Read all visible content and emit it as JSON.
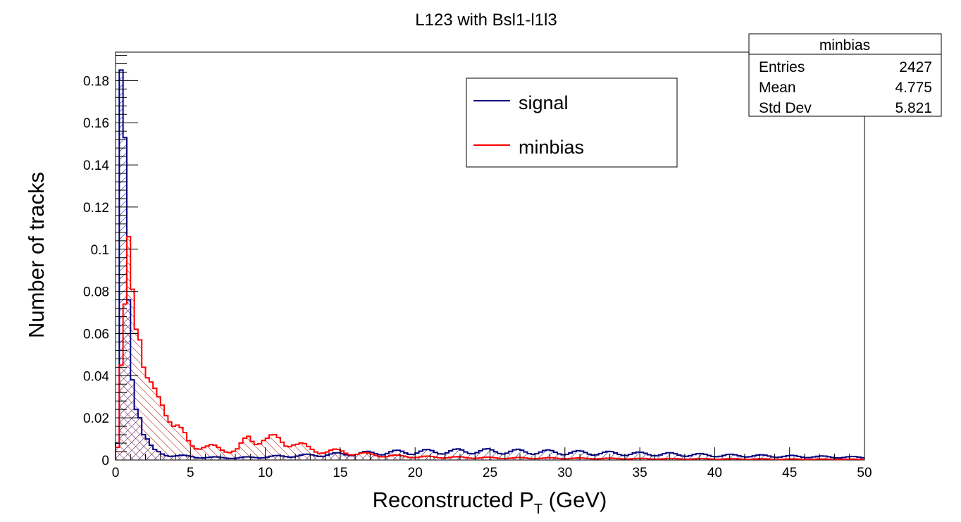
{
  "chart_data": {
    "type": "histogram",
    "title": "L123 with Bsl1-l1l3",
    "xlabel_main": "Reconstructed P",
    "xlabel_sub": "T",
    "xlabel_unit": " (GeV)",
    "ylabel": "Number of tracks",
    "xlim": [
      0,
      50
    ],
    "ylim": [
      0,
      0.1935
    ],
    "bin_width": 0.25,
    "x_ticks": [
      0,
      5,
      10,
      15,
      20,
      25,
      30,
      35,
      40,
      45,
      50
    ],
    "y_ticks": [
      0,
      0.02,
      0.04,
      0.06,
      0.08,
      0.1,
      0.12,
      0.14,
      0.16,
      0.18
    ],
    "x_tick_labels": [
      "0",
      "5",
      "10",
      "15",
      "20",
      "25",
      "30",
      "35",
      "40",
      "45",
      "50"
    ],
    "y_tick_labels": [
      "0",
      "0.02",
      "0.04",
      "0.06",
      "0.08",
      "0.1",
      "0.12",
      "0.14",
      "0.16",
      "0.18"
    ],
    "legend": {
      "placement": "top-center-right",
      "entries": [
        "signal",
        "minbias"
      ]
    },
    "stats_box": {
      "title": "minbias",
      "rows": [
        {
          "label": "Entries",
          "value": "2427"
        },
        {
          "label": "Mean",
          "value": "4.775"
        },
        {
          "label": "Std Dev",
          "value": "5.821"
        }
      ]
    },
    "series": [
      {
        "name": "signal",
        "color": "#000080",
        "fill": "hatch-right",
        "points": [
          [
            0,
            0.008
          ],
          [
            0.25,
            0.185
          ],
          [
            0.5,
            0.153
          ],
          [
            0.75,
            0.076
          ],
          [
            1.0,
            0.038
          ],
          [
            1.25,
            0.024
          ],
          [
            1.5,
            0.02
          ],
          [
            1.75,
            0.012
          ],
          [
            2.0,
            0.01
          ],
          [
            2.25,
            0.007
          ],
          [
            2.5,
            0.005
          ],
          [
            2.75,
            0.004
          ],
          [
            3.0,
            0.003
          ],
          [
            3.5,
            0.0025
          ],
          [
            4.0,
            0.002
          ],
          [
            5.0,
            0.0015
          ],
          [
            6.0,
            0.0012
          ],
          [
            8.0,
            0.001
          ],
          [
            10.0,
            0.0015
          ],
          [
            12.0,
            0.002
          ],
          [
            14.0,
            0.0025
          ],
          [
            16.0,
            0.003
          ],
          [
            18.0,
            0.0035
          ],
          [
            20.0,
            0.0038
          ],
          [
            22.0,
            0.004
          ],
          [
            24.0,
            0.0042
          ],
          [
            26.0,
            0.004
          ],
          [
            28.0,
            0.0038
          ],
          [
            30.0,
            0.0035
          ],
          [
            32.0,
            0.0033
          ],
          [
            34.0,
            0.003
          ],
          [
            36.0,
            0.0028
          ],
          [
            38.0,
            0.0025
          ],
          [
            40.0,
            0.0022
          ],
          [
            42.0,
            0.002
          ],
          [
            44.0,
            0.0018
          ],
          [
            46.0,
            0.0016
          ],
          [
            48.0,
            0.0014
          ],
          [
            50.0,
            0.0012
          ]
        ]
      },
      {
        "name": "minbias",
        "color": "#ff0000",
        "fill": "hatch-left",
        "points": [
          [
            0,
            0.006
          ],
          [
            0.25,
            0.045
          ],
          [
            0.5,
            0.074
          ],
          [
            0.75,
            0.106
          ],
          [
            1.0,
            0.081
          ],
          [
            1.25,
            0.062
          ],
          [
            1.5,
            0.057
          ],
          [
            1.75,
            0.044
          ],
          [
            2.0,
            0.039
          ],
          [
            2.25,
            0.037
          ],
          [
            2.5,
            0.034
          ],
          [
            2.75,
            0.03
          ],
          [
            3.0,
            0.026
          ],
          [
            3.25,
            0.021
          ],
          [
            3.5,
            0.018
          ],
          [
            3.75,
            0.016
          ],
          [
            4.0,
            0.013
          ],
          [
            4.5,
            0.011
          ],
          [
            5.0,
            0.008
          ],
          [
            5.5,
            0.007
          ],
          [
            6.0,
            0.006
          ],
          [
            7.0,
            0.005
          ],
          [
            8.0,
            0.005
          ],
          [
            9.0,
            0.011
          ],
          [
            10.0,
            0.009
          ],
          [
            11.0,
            0.01
          ],
          [
            12.0,
            0.007
          ],
          [
            13.0,
            0.005
          ],
          [
            14.0,
            0.004
          ],
          [
            15.0,
            0.004
          ],
          [
            16.0,
            0.003
          ],
          [
            18.0,
            0.002
          ],
          [
            20.0,
            0.0015
          ],
          [
            25.0,
            0.001
          ],
          [
            30.0,
            0.0008
          ],
          [
            35.0,
            0.0006
          ],
          [
            40.0,
            0.0005
          ],
          [
            45.0,
            0.0004
          ],
          [
            50.0,
            0.0003
          ]
        ]
      }
    ]
  }
}
